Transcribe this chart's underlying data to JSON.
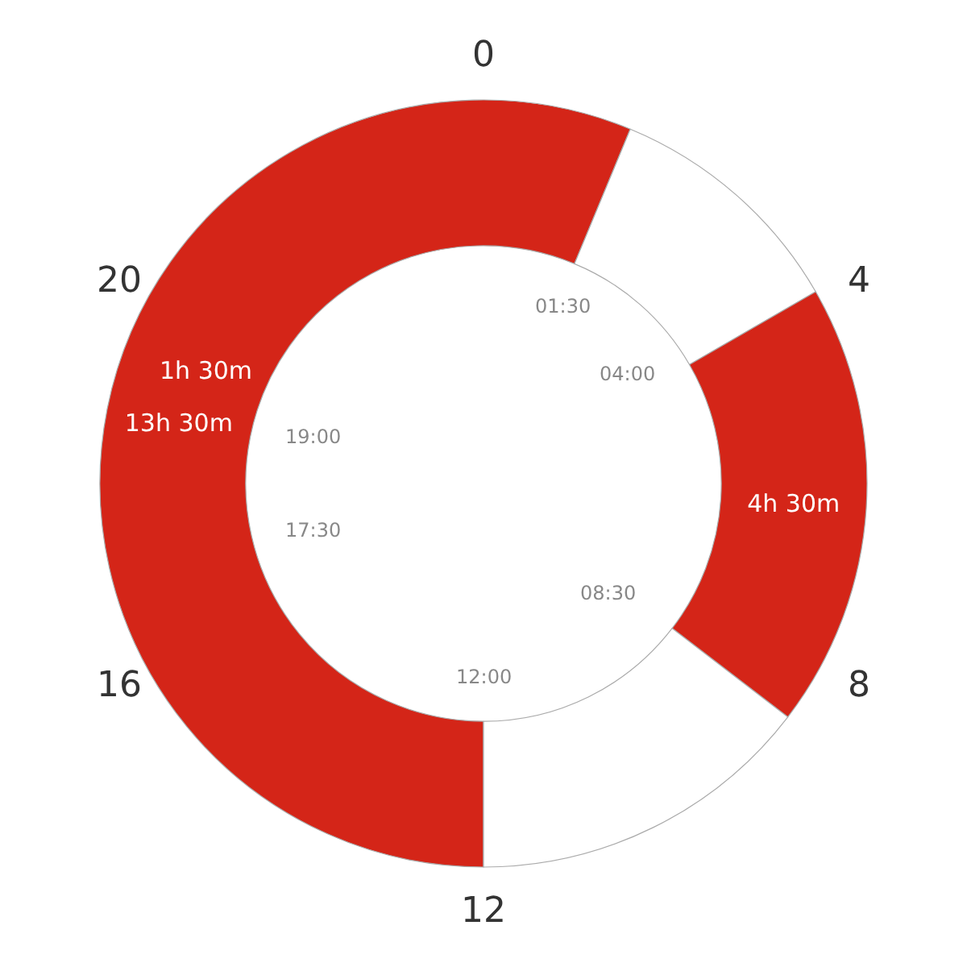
{
  "chart_data": {
    "type": "donut",
    "categories": [
      null,
      null,
      null,
      null
    ],
    "values": [
      13.5,
      2.5,
      4.5,
      3.5
    ],
    "colors": [
      "#d42518",
      "#ffffff",
      "#d42518",
      "#ffffff"
    ],
    "value_labels": [
      "13h 30m",
      null,
      "4h 30m",
      null
    ],
    "annotations": [
      "0",
      "4",
      "8",
      "12",
      "16",
      "20",
      "01:30",
      "04:00",
      "08:30",
      "12:00",
      "17:30",
      "19:00",
      "1h 30m"
    ]
  }
}
